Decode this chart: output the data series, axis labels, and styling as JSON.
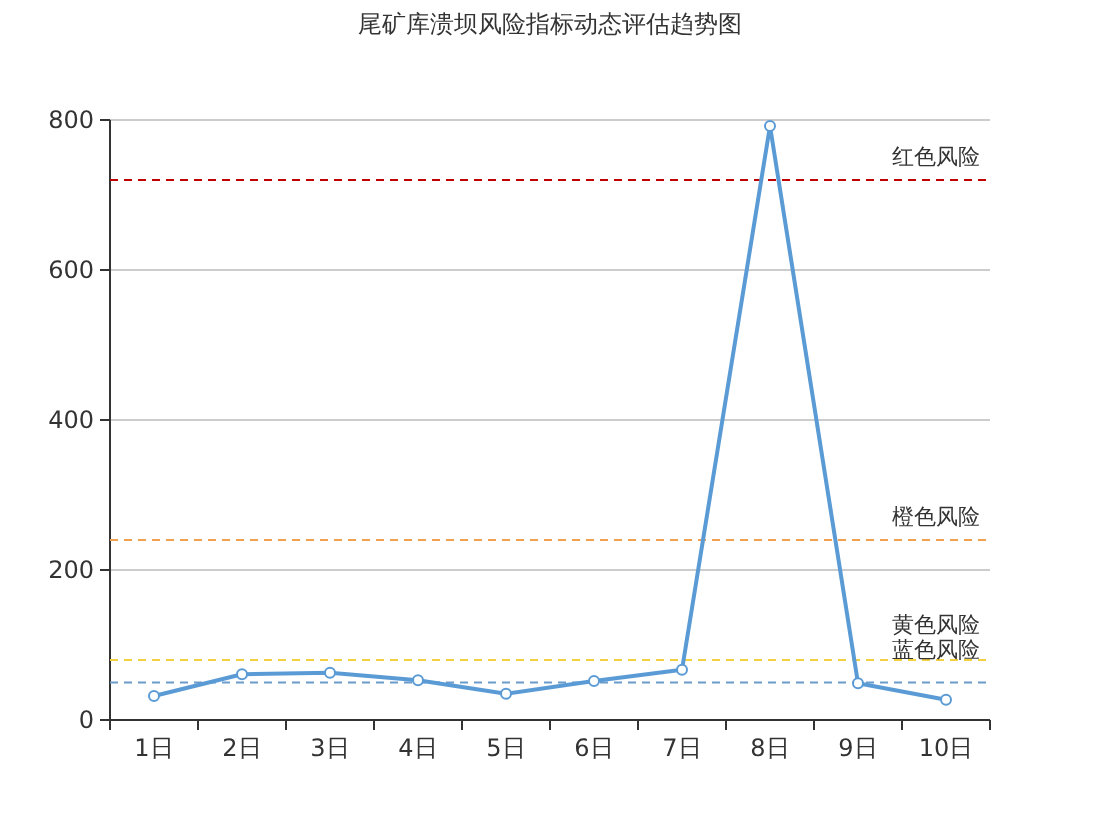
{
  "chart_data": {
    "type": "line",
    "title": "尾矿库溃坝风险指标动态评估趋势图",
    "categories": [
      "1日",
      "2日",
      "3日",
      "4日",
      "5日",
      "6日",
      "7日",
      "8日",
      "9日",
      "10日"
    ],
    "series": [
      {
        "color": "#5b9bd5",
        "values": [
          32,
          61,
          63,
          53,
          35,
          52,
          67,
          792,
          49,
          27
        ]
      }
    ],
    "ylim": [
      0,
      800
    ],
    "yticks": [
      0,
      200,
      400,
      600,
      800
    ],
    "grid": "y",
    "marker": "circle",
    "line_style": "solid",
    "ref_lines": [
      {
        "axis": "y",
        "value": 720,
        "label": "红色风险",
        "color": "#c00000",
        "line_style": "dashed"
      },
      {
        "axis": "y",
        "value": 240,
        "label": "橙色风险",
        "color": "#f0a050",
        "line_style": "dashed"
      },
      {
        "axis": "y",
        "value": 80,
        "label": "黄色风险",
        "color": "#f2d040",
        "line_style": "dashed"
      },
      {
        "axis": "y",
        "value": 50,
        "label": "蓝色风险",
        "color": "#6a9ccc",
        "line_style": "dashed"
      }
    ]
  }
}
